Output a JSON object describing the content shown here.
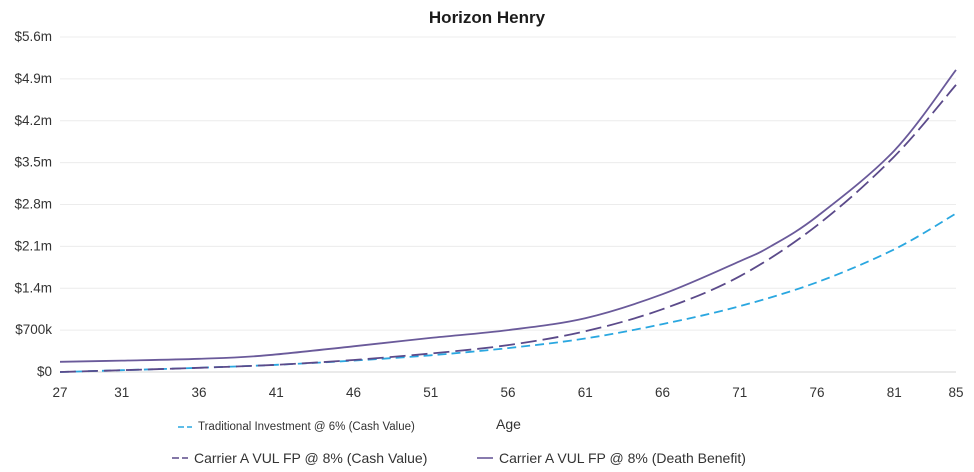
{
  "chart_data": {
    "type": "line",
    "title": "Horizon Henry",
    "xlabel": "Age",
    "ylabel": "",
    "xlim": [
      27,
      85
    ],
    "ylim": [
      0,
      5600000
    ],
    "x_ticks": [
      "27",
      "31",
      "36",
      "41",
      "46",
      "51",
      "56",
      "61",
      "66",
      "71",
      "76",
      "81",
      "85"
    ],
    "y_ticks": [
      {
        "value": 0,
        "label": "$0"
      },
      {
        "value": 700000,
        "label": "$700k"
      },
      {
        "value": 1400000,
        "label": "$1.4m"
      },
      {
        "value": 2100000,
        "label": "$2.1m"
      },
      {
        "value": 2800000,
        "label": "$2.8m"
      },
      {
        "value": 3500000,
        "label": "$3.5m"
      },
      {
        "value": 4200000,
        "label": "$4.2m"
      },
      {
        "value": 4900000,
        "label": "$4.9m"
      },
      {
        "value": 5600000,
        "label": "$5.6m"
      }
    ],
    "grid": true,
    "series": [
      {
        "name": "Traditional Investment @ 6% (Cash Value)",
        "color": "#2aa7e0",
        "style": "dashed",
        "x": [
          27,
          31,
          36,
          41,
          46,
          51,
          56,
          61,
          66,
          71,
          76,
          81,
          85
        ],
        "values": [
          0,
          30000,
          70000,
          120000,
          190000,
          280000,
          400000,
          560000,
          800000,
          1100000,
          1500000,
          2050000,
          2650000
        ]
      },
      {
        "name": "Carrier A VUL FP @ 8% (Cash Value)",
        "color": "#5b4a8a",
        "style": "dashed",
        "x": [
          27,
          31,
          36,
          41,
          46,
          51,
          56,
          61,
          66,
          71,
          76,
          81,
          85
        ],
        "values": [
          0,
          30000,
          70000,
          120000,
          200000,
          310000,
          450000,
          680000,
          1050000,
          1600000,
          2450000,
          3600000,
          4800000
        ]
      },
      {
        "name": "Carrier A VUL FP @ 8% (Death Benefit)",
        "color": "#6a5a9a",
        "style": "solid",
        "x": [
          27,
          31,
          36,
          40,
          46,
          51,
          56,
          61,
          66,
          71,
          73,
          76,
          81,
          85
        ],
        "values": [
          170000,
          190000,
          220000,
          270000,
          430000,
          570000,
          700000,
          900000,
          1300000,
          1850000,
          2100000,
          2600000,
          3700000,
          5050000
        ]
      }
    ]
  }
}
